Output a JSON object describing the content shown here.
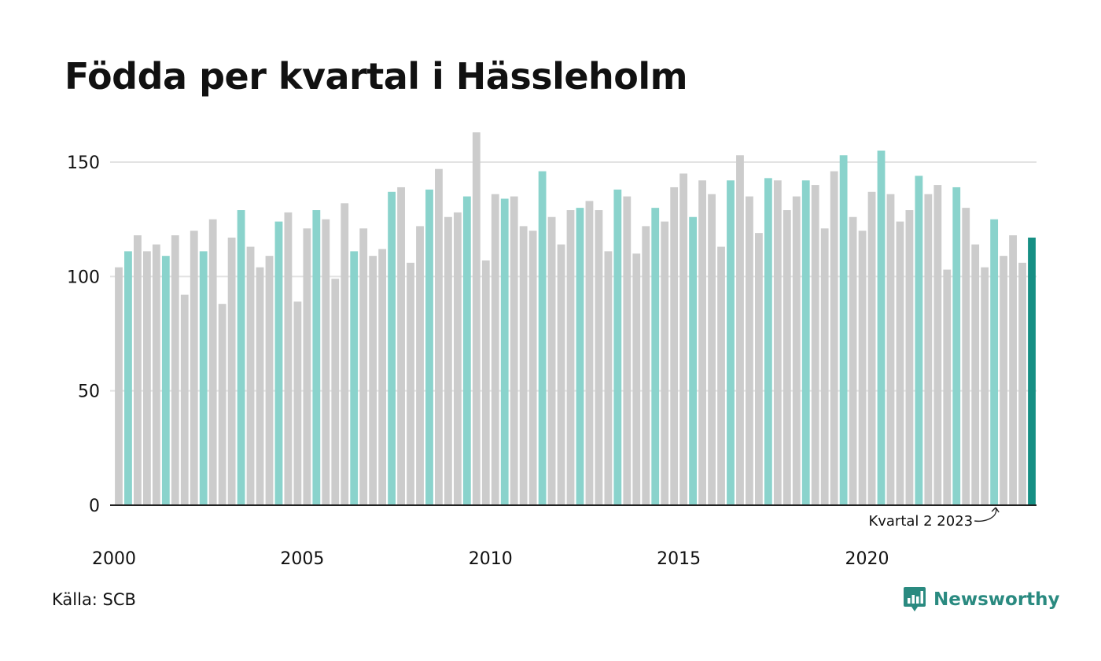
{
  "title": "Födda per kvartal i Hässleholm",
  "source": "Källa: SCB",
  "brand": {
    "name": "Newsworthy"
  },
  "colors": {
    "bar_default": "#cccccc",
    "bar_q2": "#8ad3cc",
    "bar_current": "#168f84",
    "grid": "#e3e3e3",
    "axis": "#222222",
    "text": "#111111",
    "brand": "#2a8a80"
  },
  "chart_data": {
    "type": "bar",
    "title": "Födda per kvartal i Hässleholm",
    "xlabel": "",
    "ylabel": "",
    "ylim": [
      0,
      165
    ],
    "y_ticks": [
      0,
      50,
      100,
      150
    ],
    "x_tick_labels": [
      "2000",
      "2005",
      "2010",
      "2015",
      "2020"
    ],
    "grid": true,
    "legend": "none",
    "annotation": {
      "text": "Kvartal 2 2023",
      "target": "2023 Q2"
    },
    "highlight_quarter": "Q2",
    "start": "2000 Q1",
    "categories": [
      "2000 Q1",
      "2000 Q2",
      "2000 Q3",
      "2000 Q4",
      "2001 Q1",
      "2001 Q2",
      "2001 Q3",
      "2001 Q4",
      "2002 Q1",
      "2002 Q2",
      "2002 Q3",
      "2002 Q4",
      "2003 Q1",
      "2003 Q2",
      "2003 Q3",
      "2003 Q4",
      "2004 Q1",
      "2004 Q2",
      "2004 Q3",
      "2004 Q4",
      "2005 Q1",
      "2005 Q2",
      "2005 Q3",
      "2005 Q4",
      "2006 Q1",
      "2006 Q2",
      "2006 Q3",
      "2006 Q4",
      "2007 Q1",
      "2007 Q2",
      "2007 Q3",
      "2007 Q4",
      "2008 Q1",
      "2008 Q2",
      "2008 Q3",
      "2008 Q4",
      "2009 Q1",
      "2009 Q2",
      "2009 Q3",
      "2009 Q4",
      "2010 Q1",
      "2010 Q2",
      "2010 Q3",
      "2010 Q4",
      "2011 Q1",
      "2011 Q2",
      "2011 Q3",
      "2011 Q4",
      "2012 Q1",
      "2012 Q2",
      "2012 Q3",
      "2012 Q4",
      "2013 Q1",
      "2013 Q2",
      "2013 Q3",
      "2013 Q4",
      "2014 Q1",
      "2014 Q2",
      "2014 Q3",
      "2014 Q4",
      "2015 Q1",
      "2015 Q2",
      "2015 Q3",
      "2015 Q4",
      "2016 Q1",
      "2016 Q2",
      "2016 Q3",
      "2016 Q4",
      "2017 Q1",
      "2017 Q2",
      "2017 Q3",
      "2017 Q4",
      "2018 Q1",
      "2018 Q2",
      "2018 Q3",
      "2018 Q4",
      "2019 Q1",
      "2019 Q2",
      "2019 Q3",
      "2019 Q4",
      "2020 Q1",
      "2020 Q2",
      "2020 Q3",
      "2020 Q4",
      "2021 Q1",
      "2021 Q2",
      "2021 Q3",
      "2021 Q4",
      "2022 Q1",
      "2022 Q2",
      "2022 Q3",
      "2022 Q4",
      "2023 Q1",
      "2023 Q2",
      "2023 Q3",
      "2023 Q4",
      "2024 Q1",
      "2024 Q2"
    ],
    "values": [
      104,
      111,
      118,
      111,
      114,
      109,
      118,
      92,
      120,
      111,
      125,
      88,
      117,
      129,
      113,
      104,
      109,
      124,
      128,
      89,
      121,
      129,
      125,
      99,
      132,
      111,
      121,
      109,
      112,
      137,
      139,
      106,
      122,
      138,
      147,
      126,
      128,
      135,
      163,
      107,
      136,
      134,
      135,
      122,
      120,
      146,
      126,
      114,
      129,
      130,
      133,
      129,
      111,
      138,
      135,
      110,
      122,
      130,
      124,
      139,
      145,
      126,
      142,
      136,
      113,
      142,
      153,
      135,
      119,
      143,
      142,
      129,
      135,
      142,
      140,
      121,
      146,
      153,
      126,
      120,
      137,
      155,
      136,
      124,
      129,
      144,
      136,
      140,
      103,
      139,
      130,
      114,
      104,
      125,
      109,
      118,
      106,
      117
    ]
  }
}
